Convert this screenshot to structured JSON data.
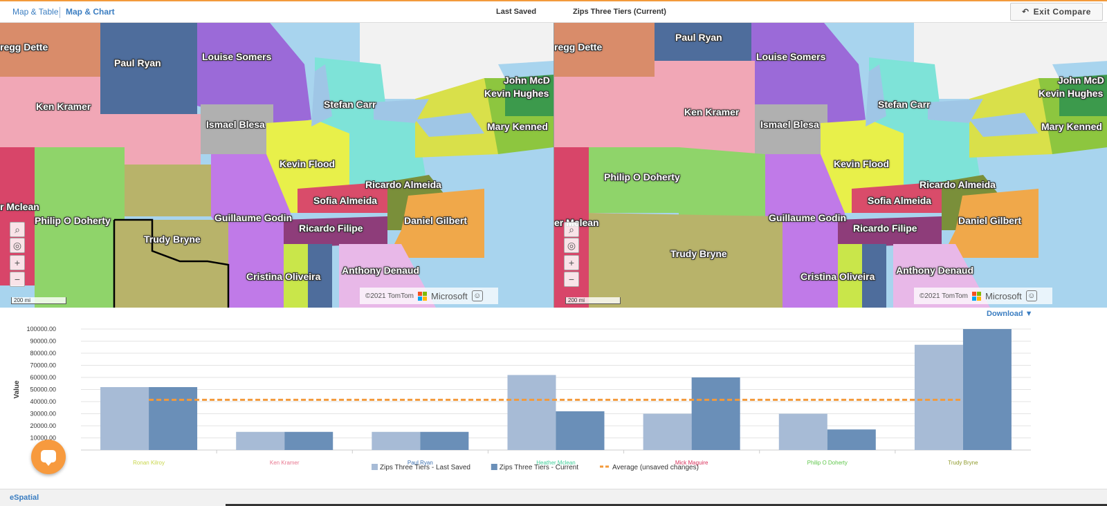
{
  "header": {
    "tabs": [
      {
        "label": "Map & Table"
      },
      {
        "label": "Map & Chart"
      }
    ],
    "last_saved_label": "Last Saved",
    "current_label": "Zips Three Tiers (Current)",
    "exit_label": "Exit Compare"
  },
  "map_left": {
    "labels": [
      "regg Dette",
      "Paul Ryan",
      "Louise Somers",
      "John McD",
      "Kevin Hughes",
      "Ken Kramer",
      "Stefan Carr",
      "Ismael Blesa",
      "Mary Kenned",
      "Kevin Flood",
      "Ricardo Almeida",
      "Sofia Almeida",
      "r Mclean",
      "Philip O Doherty",
      "Guillaume Godin",
      "Daniel Gilbert",
      "Ricardo Filipe",
      "Trudy Bryne",
      "Anthony Denaud",
      "Cristina Oliveira"
    ],
    "scale": "200 mi",
    "copyright": "©2021 TomTom"
  },
  "map_right": {
    "labels": [
      "regg Dette",
      "Paul Ryan",
      "Louise Somers",
      "John McD",
      "Kevin Hughes",
      "Ken Kramer",
      "Stefan Carr",
      "Ismael Blesa",
      "Mary Kenned",
      "Kevin Flood",
      "Philip O Doherty",
      "Ricardo Almeida",
      "Sofia Almeida",
      "er Mclean",
      "Guillaume Godin",
      "Daniel Gilbert",
      "Ricardo Filipe",
      "Trudy Bryne",
      "Anthony Denaud",
      "Cristina Oliveira"
    ],
    "scale": "200 mi",
    "copyright": "©2021 TomTom"
  },
  "map_common": {
    "microsoft": "Microsoft",
    "colors": {
      "accent": "#f39a3b"
    }
  },
  "download_label": "Download ▼",
  "chart_data": {
    "type": "bar",
    "ylabel": "Value",
    "ylim": [
      0,
      100000
    ],
    "yticks": [
      10000,
      20000,
      30000,
      40000,
      50000,
      60000,
      70000,
      80000,
      90000,
      100000
    ],
    "categories": [
      "Ronan Kilroy",
      "Ken Kramer",
      "Paul Ryan",
      "Heather Mclean",
      "Mick Maguire",
      "Philip O Doherty",
      "Trudy Bryne"
    ],
    "category_colors": [
      "#c8d64a",
      "#e8768f",
      "#3a6fb0",
      "#3fcf9a",
      "#d9315c",
      "#5ec74a",
      "#8f9a2c"
    ],
    "series": [
      {
        "name": "Zips Three Tiers - Last Saved",
        "color": "#a7bbd6",
        "values": [
          52000,
          15000,
          15000,
          62000,
          30000,
          30000,
          87000
        ]
      },
      {
        "name": "Zips Three Tiers - Current",
        "color": "#6a8fb8",
        "values": [
          52000,
          15000,
          15000,
          32000,
          60000,
          17000,
          100000
        ]
      }
    ],
    "average": {
      "name": "Average (unsaved changes)",
      "value": 41500,
      "color": "#f39a3b"
    },
    "grid": true,
    "legend": "bottom"
  },
  "footer": {
    "logo": "eSpatial"
  }
}
